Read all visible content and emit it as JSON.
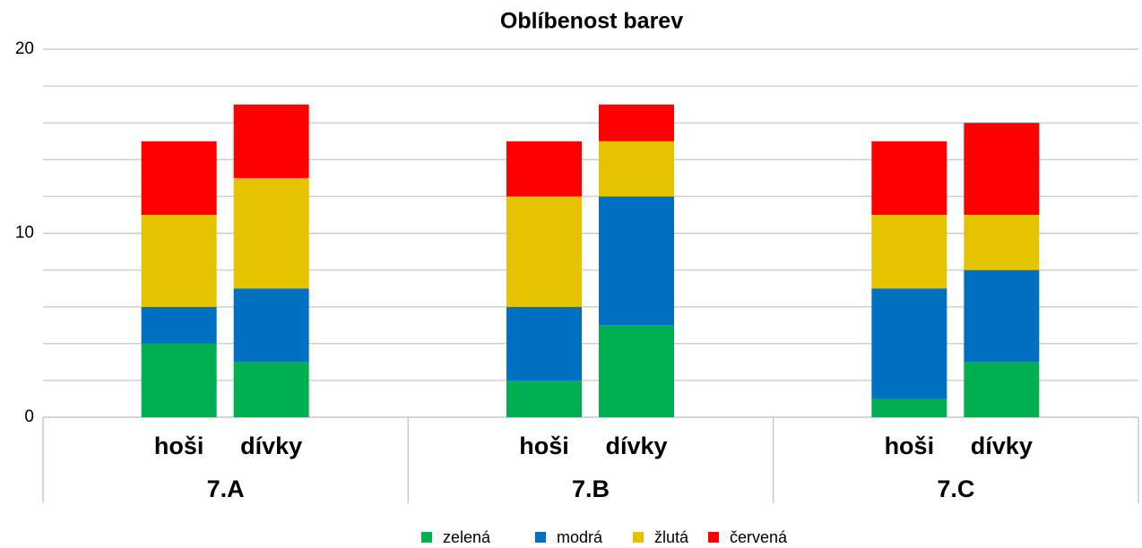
{
  "chart_data": {
    "type": "stacked_bar",
    "title": "Oblíbenost barev",
    "groups": [
      "7.A",
      "7.B",
      "7.C"
    ],
    "categories": [
      "hoši",
      "dívky",
      "hoši",
      "dívky",
      "hoši",
      "dívky"
    ],
    "series": [
      {
        "name": "zelená",
        "color": "#00b050",
        "values": [
          4,
          3,
          2,
          5,
          1,
          3
        ]
      },
      {
        "name": "modrá",
        "color": "#0070c0",
        "values": [
          2,
          4,
          4,
          7,
          6,
          5
        ]
      },
      {
        "name": "žlutá",
        "color": "#e6c300",
        "values": [
          5,
          6,
          6,
          3,
          4,
          3
        ]
      },
      {
        "name": "červená",
        "color": "#ff0000",
        "values": [
          4,
          4,
          3,
          2,
          4,
          5
        ]
      }
    ],
    "ylim": [
      0,
      20
    ],
    "yticks": [
      0,
      10,
      20
    ],
    "minor_yticks": [
      2,
      4,
      6,
      8,
      12,
      14,
      16,
      18
    ],
    "grid": true,
    "legend": "bottom"
  }
}
